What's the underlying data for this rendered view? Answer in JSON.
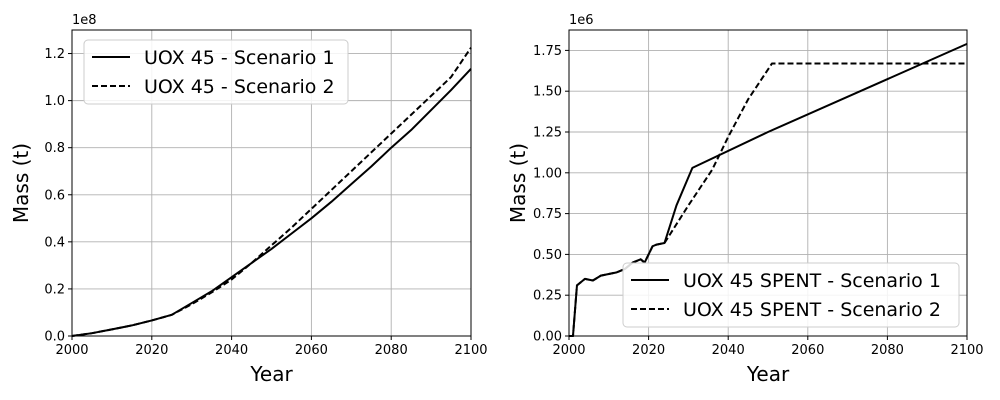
{
  "chart_data": [
    {
      "type": "line",
      "xlabel": "Year",
      "ylabel": "Mass (t)",
      "offset_label": "1e8",
      "xlim": [
        2000,
        2100
      ],
      "ylim": [
        0,
        1.3
      ],
      "xticks": [
        2000,
        2020,
        2040,
        2060,
        2080,
        2100
      ],
      "xtick_labels": [
        "2000",
        "2020",
        "2040",
        "2060",
        "2080",
        "2100"
      ],
      "yticks": [
        0,
        0.2,
        0.4,
        0.6,
        0.8,
        1.0,
        1.2
      ],
      "ytick_labels": [
        "0.0",
        "0.2",
        "0.4",
        "0.6",
        "0.8",
        "1.0",
        "1.2"
      ],
      "grid": true,
      "legend_position": "top-left",
      "series": [
        {
          "name": "UOX 45 - Scenario 1",
          "style": "solid",
          "color": "#000000",
          "x": [
            2000,
            2005,
            2010,
            2015,
            2020,
            2025,
            2030,
            2035,
            2040,
            2045,
            2050,
            2055,
            2060,
            2065,
            2070,
            2075,
            2080,
            2085,
            2090,
            2095,
            2100
          ],
          "y": [
            0.0,
            0.012,
            0.028,
            0.045,
            0.066,
            0.09,
            0.14,
            0.19,
            0.25,
            0.31,
            0.37,
            0.435,
            0.5,
            0.57,
            0.645,
            0.72,
            0.8,
            0.875,
            0.96,
            1.045,
            1.135
          ]
        },
        {
          "name": "UOX 45 - Scenario 2",
          "style": "dashed",
          "color": "#000000",
          "x": [
            2000,
            2005,
            2010,
            2015,
            2020,
            2025,
            2030,
            2035,
            2040,
            2045,
            2050,
            2055,
            2060,
            2065,
            2070,
            2075,
            2080,
            2085,
            2090,
            2095,
            2100
          ],
          "y": [
            0.0,
            0.012,
            0.028,
            0.045,
            0.066,
            0.09,
            0.135,
            0.185,
            0.24,
            0.31,
            0.385,
            0.46,
            0.54,
            0.62,
            0.7,
            0.78,
            0.86,
            0.94,
            1.02,
            1.1,
            1.225
          ]
        }
      ]
    },
    {
      "type": "line",
      "xlabel": "Year",
      "ylabel": "Mass (t)",
      "offset_label": "1e6",
      "xlim": [
        2000,
        2100
      ],
      "ylim": [
        0,
        1.875
      ],
      "xticks": [
        2000,
        2020,
        2040,
        2060,
        2080,
        2100
      ],
      "xtick_labels": [
        "2000",
        "2020",
        "2040",
        "2060",
        "2080",
        "2100"
      ],
      "yticks": [
        0,
        0.25,
        0.5,
        0.75,
        1.0,
        1.25,
        1.5,
        1.75
      ],
      "ytick_labels": [
        "0.00",
        "0.25",
        "0.50",
        "0.75",
        "1.00",
        "1.25",
        "1.50",
        "1.75"
      ],
      "grid": true,
      "legend_position": "bottom-right",
      "series": [
        {
          "name": "UOX 45 SPENT - Scenario 1",
          "style": "solid",
          "color": "#000000",
          "x": [
            2000,
            2001,
            2002,
            2004,
            2006,
            2008,
            2010,
            2012,
            2014,
            2016,
            2018,
            2019,
            2020,
            2021,
            2022,
            2024,
            2027,
            2031,
            2050,
            2100
          ],
          "y": [
            0.0,
            0.0,
            0.31,
            0.35,
            0.34,
            0.37,
            0.38,
            0.39,
            0.41,
            0.45,
            0.47,
            0.45,
            0.5,
            0.55,
            0.56,
            0.57,
            0.8,
            1.03,
            1.25,
            1.79
          ]
        },
        {
          "name": "UOX 45 SPENT - Scenario 2",
          "style": "dashed",
          "color": "#000000",
          "x": [
            2000,
            2001,
            2002,
            2004,
            2006,
            2008,
            2010,
            2012,
            2014,
            2016,
            2018,
            2019,
            2020,
            2021,
            2022,
            2024,
            2030,
            2036,
            2040,
            2045,
            2051,
            2100
          ],
          "y": [
            0.0,
            0.0,
            0.31,
            0.35,
            0.34,
            0.37,
            0.38,
            0.39,
            0.41,
            0.45,
            0.47,
            0.45,
            0.5,
            0.55,
            0.56,
            0.57,
            0.8,
            1.02,
            1.22,
            1.45,
            1.67,
            1.67
          ]
        }
      ]
    }
  ]
}
